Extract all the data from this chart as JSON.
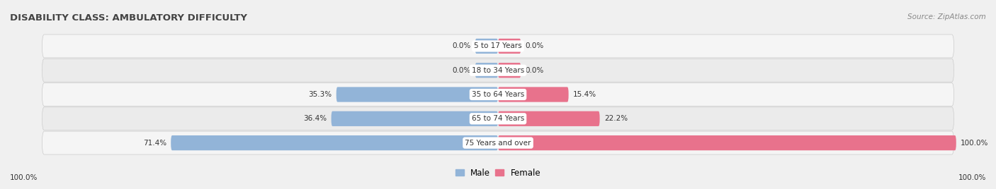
{
  "title": "DISABILITY CLASS: AMBULATORY DIFFICULTY",
  "source": "Source: ZipAtlas.com",
  "categories": [
    "5 to 17 Years",
    "18 to 34 Years",
    "35 to 64 Years",
    "65 to 74 Years",
    "75 Years and over"
  ],
  "male_values": [
    0.0,
    0.0,
    35.3,
    36.4,
    71.4
  ],
  "female_values": [
    0.0,
    0.0,
    15.4,
    22.2,
    100.0
  ],
  "male_color": "#92b4d8",
  "female_color": "#e8728c",
  "label_color": "#333333",
  "title_color": "#444444",
  "source_color": "#888888",
  "max_val": 100.0,
  "bar_height": 0.62,
  "min_bar_show": 5.0,
  "legend_male": "Male",
  "legend_female": "Female",
  "background_color": "#f0f0f0",
  "row_colors": [
    "#f5f5f5",
    "#ebebeb"
  ]
}
